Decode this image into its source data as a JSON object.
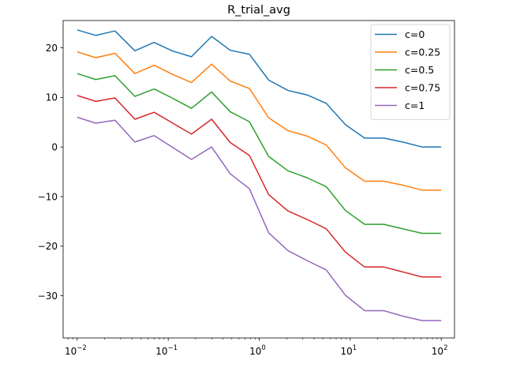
{
  "chart_data": {
    "type": "line",
    "title": "R_trial_avg",
    "xlabel": "",
    "ylabel": "",
    "xscale": "log",
    "xlim": [
      0.007,
      140
    ],
    "ylim": [
      -38.5,
      25.5
    ],
    "grid": false,
    "legend_position": "top-right",
    "x_ticks": [
      {
        "value": 0.01,
        "base": "10",
        "exp": "−2"
      },
      {
        "value": 0.1,
        "base": "10",
        "exp": "−1"
      },
      {
        "value": 1,
        "base": "10",
        "exp": "0"
      },
      {
        "value": 10,
        "base": "10",
        "exp": "1"
      },
      {
        "value": 100,
        "base": "10",
        "exp": "2"
      }
    ],
    "y_ticks": [
      {
        "value": 20,
        "label": "20"
      },
      {
        "value": 10,
        "label": "10"
      },
      {
        "value": 0,
        "label": "0"
      },
      {
        "value": -10,
        "label": "−10"
      },
      {
        "value": -20,
        "label": "−20"
      },
      {
        "value": -30,
        "label": "−30"
      }
    ],
    "x": [
      0.01,
      0.016,
      0.026,
      0.043,
      0.07,
      0.11,
      0.18,
      0.3,
      0.48,
      0.78,
      1.27,
      2.07,
      3.36,
      5.46,
      8.86,
      14.4,
      23.4,
      37.9,
      61.6,
      100
    ],
    "series": [
      {
        "name": "c=0",
        "color": "#1f77b4",
        "values": [
          23.6,
          22.5,
          23.4,
          19.4,
          21.1,
          19.4,
          18.2,
          22.3,
          19.5,
          18.7,
          13.5,
          11.4,
          10.5,
          8.8,
          4.5,
          1.8,
          1.8,
          1.0,
          0.0,
          0.0
        ]
      },
      {
        "name": "c=0.25",
        "color": "#ff7f0e",
        "values": [
          19.2,
          18.0,
          18.9,
          14.8,
          16.5,
          14.7,
          13.0,
          16.7,
          13.3,
          11.8,
          5.9,
          3.3,
          2.2,
          0.4,
          -4.2,
          -6.9,
          -6.9,
          -7.7,
          -8.7,
          -8.7
        ]
      },
      {
        "name": "c=0.5",
        "color": "#2ca02c",
        "values": [
          14.8,
          13.6,
          14.4,
          10.2,
          11.7,
          9.9,
          7.8,
          11.1,
          7.1,
          5.1,
          -1.9,
          -4.8,
          -6.2,
          -8.0,
          -12.8,
          -15.6,
          -15.6,
          -16.5,
          -17.4,
          -17.4
        ]
      },
      {
        "name": "c=0.75",
        "color": "#d62728",
        "values": [
          10.4,
          9.2,
          9.9,
          5.6,
          7.0,
          4.9,
          2.6,
          5.6,
          0.9,
          -1.7,
          -9.6,
          -12.9,
          -14.6,
          -16.5,
          -21.2,
          -24.2,
          -24.2,
          -25.2,
          -26.2,
          -26.2
        ]
      },
      {
        "name": "c=1",
        "color": "#9467bd",
        "values": [
          6.0,
          4.8,
          5.4,
          1.0,
          2.3,
          0.0,
          -2.5,
          0.0,
          -5.4,
          -8.4,
          -17.3,
          -20.9,
          -22.9,
          -24.8,
          -29.9,
          -33.0,
          -33.0,
          -34.1,
          -35.0,
          -35.0
        ]
      }
    ]
  }
}
